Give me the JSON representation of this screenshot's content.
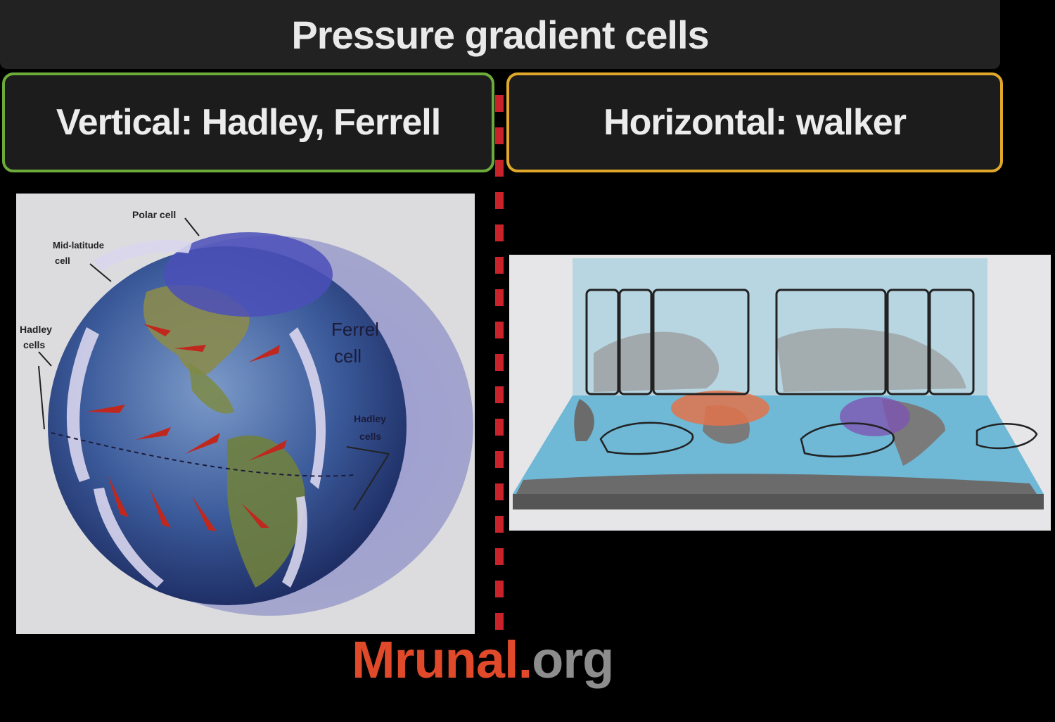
{
  "title": "Pressure gradient cells",
  "left_box": {
    "label": "Vertical: Hadley, Ferrell"
  },
  "right_box": {
    "label": "Horizontal: walker"
  },
  "globe_labels": {
    "polar": "Polar cell",
    "midlat_1": "Mid-latitude",
    "midlat_2": "cell",
    "hadley_1": "Hadley",
    "hadley_2": "cells",
    "ferrel_1": "Ferrel",
    "ferrel_2": "cell",
    "hadley_right_1": "Hadley",
    "hadley_right_2": "cells"
  },
  "footer": {
    "brand": "Mrunal",
    "dot": ".",
    "tld": "org"
  },
  "colors": {
    "left_border": "#6cab3a",
    "right_border": "#e0a72a",
    "divider": "#c8222a",
    "brand": "#e04a2a"
  }
}
